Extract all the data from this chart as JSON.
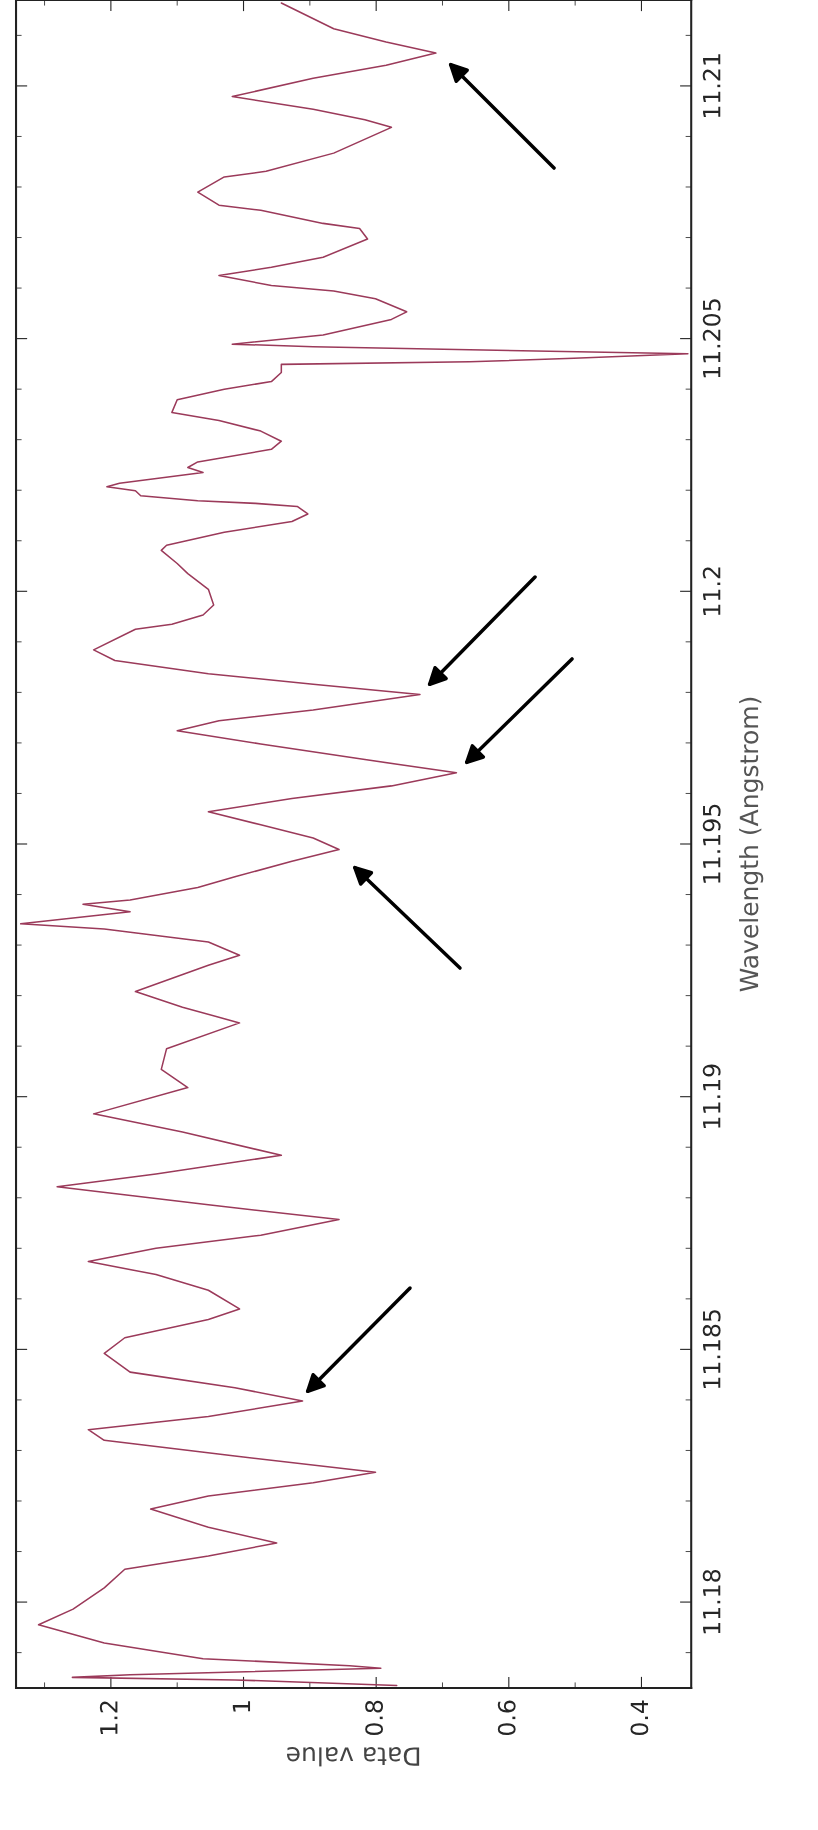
{
  "chart_data": {
    "type": "line",
    "ylabel": "Wavelength (Angstrom)",
    "xlabel": "Data value",
    "ylim": [
      11.1783,
      11.2117
    ],
    "yticks": [
      11.18,
      11.185,
      11.19,
      11.195,
      11.2,
      11.205,
      11.21
    ],
    "xlim": [
      1.343,
      0.325
    ],
    "xticks": [
      1.2,
      1,
      0.8,
      0.6,
      0.4
    ],
    "grid": false,
    "marker": "none",
    "line_style": "solid",
    "series": [
      {
        "color": "#9b3a5a",
        "values": [
          11.17835,
          11.17846,
          11.17851,
          11.17856,
          11.17869,
          11.17874,
          11.17888,
          11.17919,
          11.17955,
          11.17986,
          11.18028,
          11.18065,
          11.18091,
          11.18117,
          11.18148,
          11.18184,
          11.1821,
          11.18236,
          11.18257,
          11.18289,
          11.1832,
          11.18341,
          11.18367,
          11.18398,
          11.18424,
          11.18455,
          11.18492,
          11.18523,
          11.18559,
          11.1858,
          11.18617,
          11.18648,
          11.18674,
          11.187,
          11.18726,
          11.18757,
          11.18786,
          11.18822,
          11.18847,
          11.18884,
          11.1893,
          11.18966,
          11.19018,
          11.19054,
          11.19095,
          11.19146,
          11.19177,
          11.19208,
          11.1926,
          11.1928,
          11.19306,
          11.19332,
          11.19342,
          11.19366,
          11.19381,
          11.19389,
          11.19414,
          11.19435,
          11.19466,
          11.19489,
          11.19512,
          11.19538,
          11.19564,
          11.1959,
          11.19615,
          11.19641,
          11.19667,
          11.19698,
          11.19724,
          11.19744,
          11.19765,
          11.19796,
          11.19816,
          11.19837,
          11.19863,
          11.19884,
          11.19925,
          11.19935,
          11.19953,
          11.19973,
          11.20004,
          11.20035,
          11.20055,
          11.20081,
          11.20091,
          11.20117,
          11.20138,
          11.20153,
          11.20168,
          11.20174,
          11.20179,
          11.20189,
          11.20199,
          11.20207,
          11.20214,
          11.20235,
          11.20245,
          11.20256,
          11.20281,
          11.20297,
          11.20317,
          11.20338,
          11.20354,
          11.20379,
          11.204,
          11.20415,
          11.20433,
          11.20449,
          11.20454,
          11.20461,
          11.2047,
          11.20478,
          11.20484,
          11.20489,
          11.20507,
          11.20538,
          11.20553,
          11.20579,
          11.20594,
          11.20605,
          11.20625,
          11.20641,
          11.20661,
          11.20697,
          11.20718,
          11.20728,
          11.20754,
          11.20764,
          11.2079,
          11.2082,
          11.20831,
          11.20867,
          11.20918,
          11.20933,
          11.20954,
          11.20979,
          11.21015,
          11.21041,
          11.21065,
          11.21087,
          11.21113,
          11.21164
        ],
        "x": [
          0.769,
          1.013,
          1.258,
          1.171,
          0.793,
          0.84,
          1.061,
          1.21,
          1.309,
          1.257,
          1.21,
          1.179,
          1.053,
          0.95,
          1.053,
          1.14,
          1.053,
          0.895,
          0.801,
          1.013,
          1.21,
          1.234,
          1.053,
          0.911,
          1.013,
          1.171,
          1.21,
          1.179,
          1.053,
          1.006,
          1.053,
          1.132,
          1.234,
          1.132,
          0.974,
          0.856,
          1.053,
          1.281,
          1.132,
          0.943,
          1.092,
          1.226,
          1.084,
          1.124,
          1.116,
          1.006,
          1.092,
          1.163,
          1.053,
          1.006,
          1.053,
          1.21,
          1.336,
          1.171,
          1.242,
          1.171,
          1.069,
          1.013,
          0.927,
          0.856,
          0.895,
          0.974,
          1.053,
          0.927,
          0.777,
          0.679,
          0.817,
          0.974,
          1.1,
          1.037,
          0.895,
          0.734,
          0.895,
          1.053,
          1.194,
          1.226,
          1.163,
          1.108,
          1.061,
          1.045,
          1.053,
          1.084,
          1.1,
          1.124,
          1.116,
          1.029,
          0.927,
          0.903,
          0.919,
          0.982,
          1.069,
          1.155,
          1.163,
          1.206,
          1.187,
          1.061,
          1.084,
          1.069,
          0.958,
          0.943,
          0.974,
          1.037,
          1.108,
          1.1,
          1.029,
          0.958,
          0.943,
          0.943,
          0.659,
          0.502,
          0.33,
          0.659,
          0.895,
          1.017,
          0.88,
          0.777,
          0.754,
          0.801,
          0.864,
          0.958,
          1.037,
          0.958,
          0.88,
          0.813,
          0.825,
          0.88,
          0.974,
          1.037,
          1.069,
          1.029,
          0.966,
          0.864,
          0.777,
          0.817,
          0.895,
          1.017,
          0.895,
          0.785,
          0.71,
          0.785,
          0.864,
          0.943
        ]
      }
    ]
  }
}
